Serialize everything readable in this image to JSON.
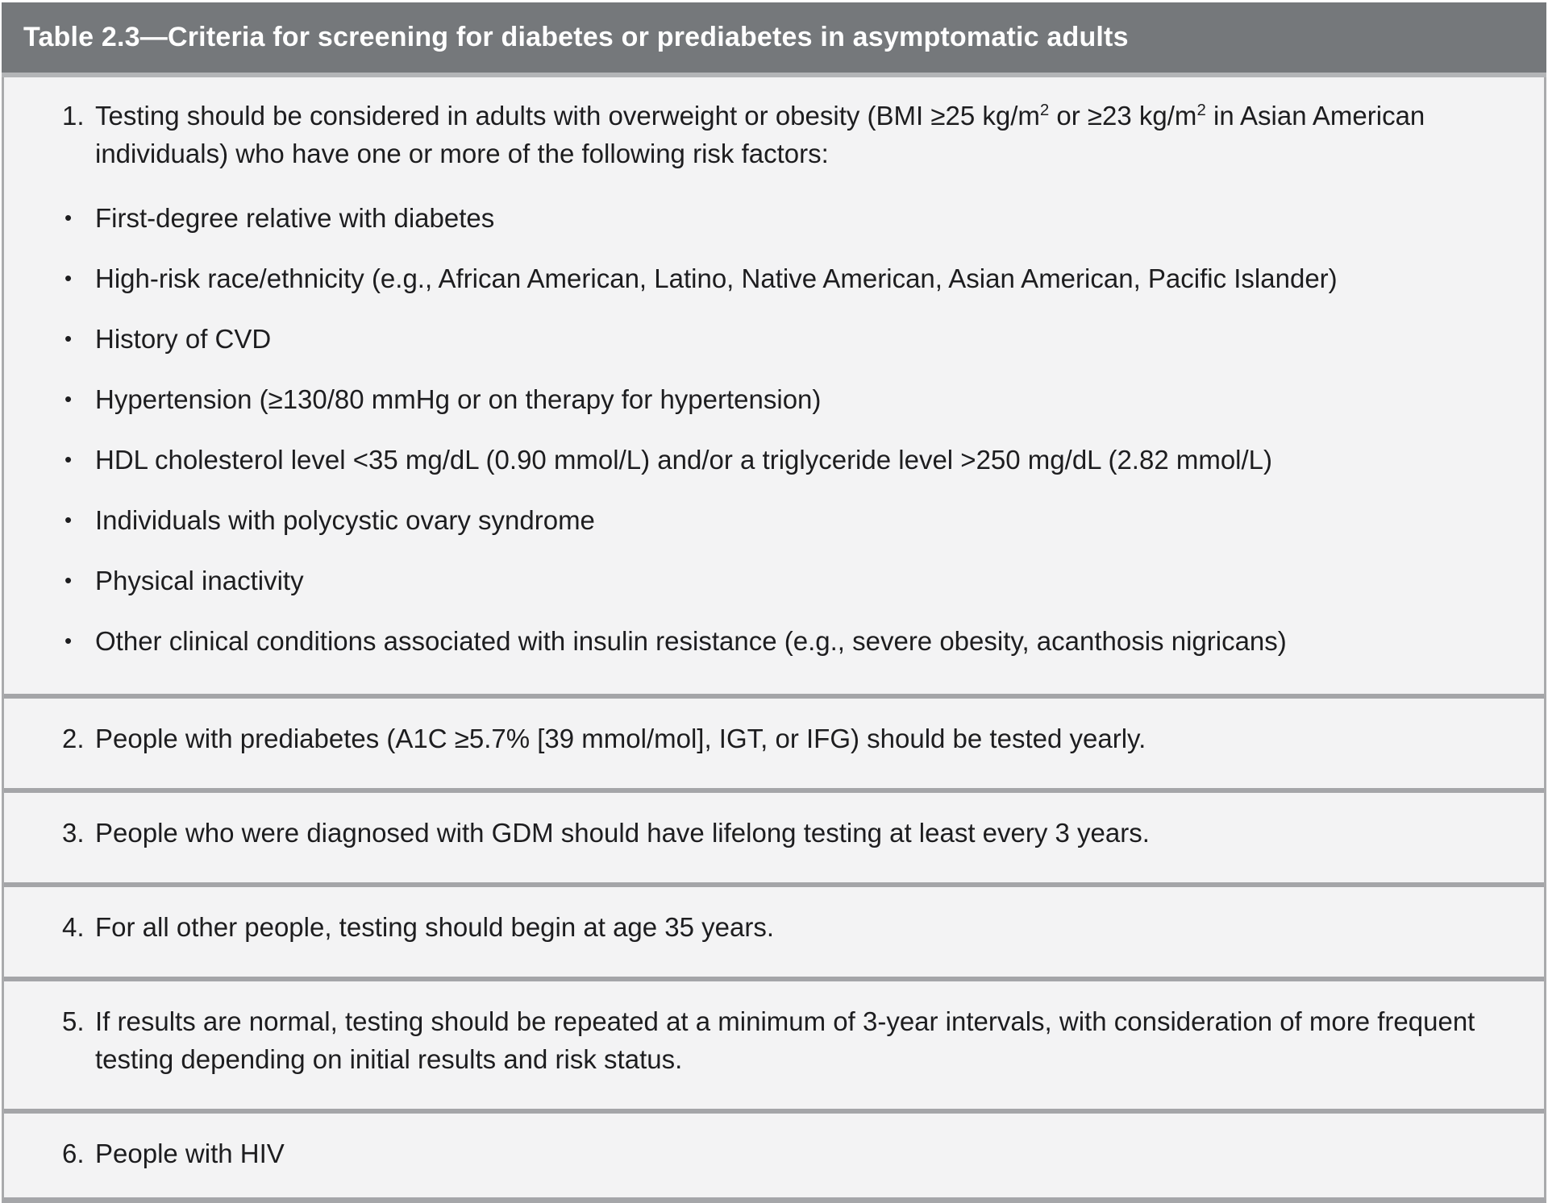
{
  "table": {
    "title": "Table 2.3—Criteria for screening for diabetes or prediabetes in asymptomatic adults",
    "bullet_glyph": "•",
    "item1": {
      "number": "1.",
      "text_part1": "Testing should be considered in adults with overweight or obesity (BMI ≥25 kg/m",
      "sup1": "2",
      "text_part2": " or ≥23 kg/m",
      "sup2": "2",
      "text_part3": " in Asian American individuals) who have one or more of the following risk factors:"
    },
    "risk_factors": [
      "First-degree relative with diabetes",
      "High-risk race/ethnicity (e.g., African American, Latino, Native American, Asian American, Pacific Islander)",
      "History of CVD",
      "Hypertension (≥130/80 mmHg or on therapy for hypertension)",
      "HDL cholesterol level <35 mg/dL (0.90 mmol/L) and/or a triglyceride level >250 mg/dL (2.82 mmol/L)",
      "Individuals with polycystic ovary syndrome",
      "Physical inactivity",
      "Other clinical conditions associated with insulin resistance (e.g., severe obesity, acanthosis nigricans)"
    ],
    "items": [
      {
        "number": "2.",
        "text": "People with prediabetes (A1C ≥5.7% [39 mmol/mol], IGT, or IFG) should be tested yearly."
      },
      {
        "number": "3.",
        "text": "People who were diagnosed with GDM should have lifelong testing at least every 3 years."
      },
      {
        "number": "4.",
        "text": "For all other people, testing should begin at age 35 years."
      },
      {
        "number": "5.",
        "text": "If results are normal, testing should be repeated at a minimum of 3-year intervals, with consideration of more frequent testing depending on initial results and risk status."
      },
      {
        "number": "6.",
        "text": "People with HIV"
      }
    ],
    "colors": {
      "header_bg": "#75787b",
      "header_text": "#ffffff",
      "body_bg": "#f3f3f4",
      "divider": "#a4a5a8",
      "text": "#1d1d1f"
    }
  }
}
